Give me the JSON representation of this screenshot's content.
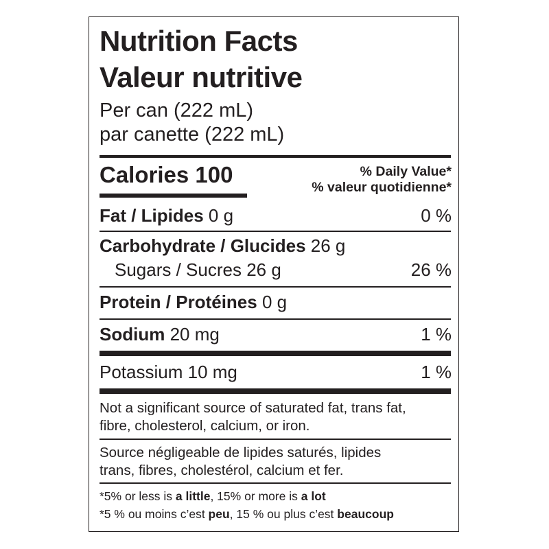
{
  "title_en": "Nutrition Facts",
  "title_fr": "Valeur nutritive",
  "serving_en": "Per can (222 mL)",
  "serving_fr": "par canette (222 mL)",
  "calories": {
    "label": "Calories",
    "value": "100"
  },
  "daily_value_en": "% Daily Value*",
  "daily_value_fr": "% valeur quotidienne*",
  "nutrients": [
    {
      "label": "Fat / Lipides",
      "amount": "0 g",
      "dv": "0 %"
    },
    {
      "label": "Carbohydrate / Glucides",
      "amount": "26 g",
      "dv": ""
    },
    {
      "label": "Sugars / Sucres",
      "amount": "26 g",
      "dv": "26 %"
    },
    {
      "label": "Protein / Protéines",
      "amount": "0 g",
      "dv": ""
    },
    {
      "label": "Sodium",
      "amount": "20 mg",
      "dv": "1 %"
    },
    {
      "label": "Potassium",
      "amount": "10 mg",
      "dv": "1 %"
    }
  ],
  "note_en": [
    "Not a significant source of saturated fat, trans fat,",
    "fibre, cholesterol, calcium, or iron."
  ],
  "note_fr": [
    "Source négligeable de lipides saturés, lipides",
    "trans, fibres, cholestérol, calcium et fer."
  ],
  "footnote_en": {
    "a": "*5% or less is ",
    "b": "a little",
    "c": ", 15% or more is ",
    "d": "a lot"
  },
  "footnote_fr": {
    "a": "*5 % ou moins c’est ",
    "b": "peu",
    "c": ", 15 % ou plus c’est ",
    "d": "beaucoup"
  }
}
